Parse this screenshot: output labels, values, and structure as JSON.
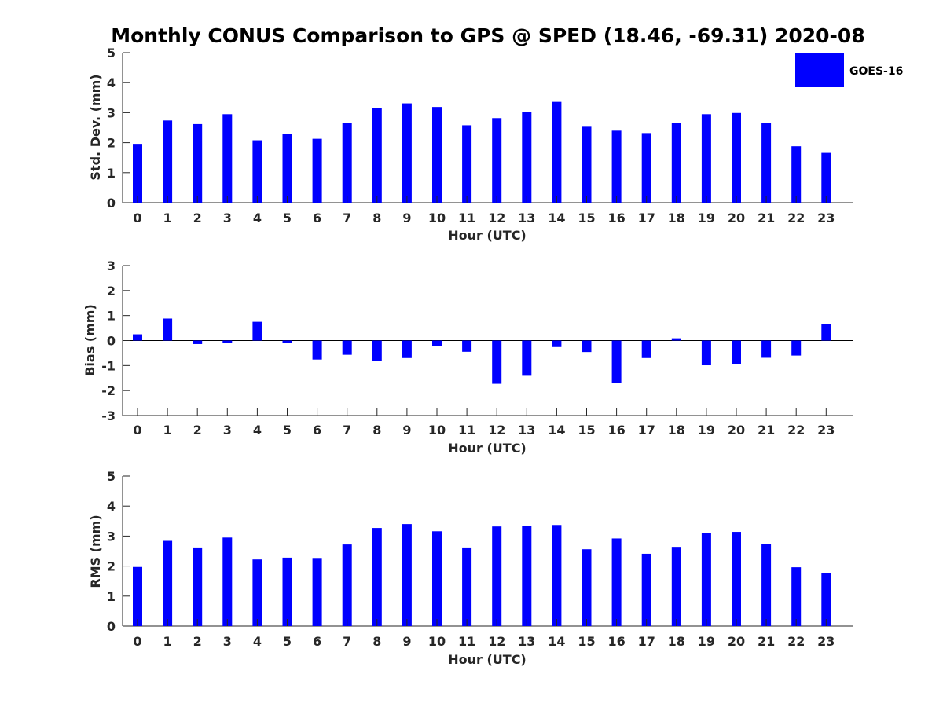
{
  "title": "Monthly CONUS Comparison to GPS @ SPED (18.46, -69.31) 2020-08",
  "colors": {
    "bar": "#0000ff",
    "axis": "#262626"
  },
  "legend": {
    "label": "GOES-16"
  },
  "chart_data": [
    {
      "type": "bar",
      "series_name": "GOES-16",
      "ylabel": "Std. Dev. (mm)",
      "xlabel": "Hour (UTC)",
      "ylim": [
        0,
        5
      ],
      "yticks": [
        0,
        1,
        2,
        3,
        4,
        5
      ],
      "categories": [
        0,
        1,
        2,
        3,
        4,
        5,
        6,
        7,
        8,
        9,
        10,
        11,
        12,
        13,
        14,
        15,
        16,
        17,
        18,
        19,
        20,
        21,
        22,
        23
      ],
      "values": [
        1.96,
        2.74,
        2.62,
        2.95,
        2.08,
        2.29,
        2.13,
        2.66,
        3.15,
        3.31,
        3.19,
        2.58,
        2.82,
        3.02,
        3.36,
        2.53,
        2.4,
        2.32,
        2.66,
        2.95,
        2.99,
        2.66,
        1.88,
        1.66
      ]
    },
    {
      "type": "bar",
      "series_name": "GOES-16",
      "ylabel": "Bias (mm)",
      "xlabel": "Hour (UTC)",
      "ylim": [
        -3,
        3
      ],
      "yticks": [
        -3,
        -2,
        -1,
        0,
        1,
        2,
        3
      ],
      "categories": [
        0,
        1,
        2,
        3,
        4,
        5,
        6,
        7,
        8,
        9,
        10,
        11,
        12,
        13,
        14,
        15,
        16,
        17,
        18,
        19,
        20,
        21,
        22,
        23
      ],
      "values": [
        0.25,
        0.88,
        -0.14,
        -0.1,
        0.75,
        -0.08,
        -0.76,
        -0.57,
        -0.82,
        -0.7,
        -0.21,
        -0.45,
        -1.73,
        -1.41,
        -0.26,
        -0.46,
        -1.71,
        -0.7,
        0.09,
        -0.99,
        -0.94,
        -0.69,
        -0.6,
        0.65
      ]
    },
    {
      "type": "bar",
      "series_name": "GOES-16",
      "ylabel": "RMS (mm)",
      "xlabel": "Hour (UTC)",
      "ylim": [
        0,
        5
      ],
      "yticks": [
        0,
        1,
        2,
        3,
        4,
        5
      ],
      "categories": [
        0,
        1,
        2,
        3,
        4,
        5,
        6,
        7,
        8,
        9,
        10,
        11,
        12,
        13,
        14,
        15,
        16,
        17,
        18,
        19,
        20,
        21,
        22,
        23
      ],
      "values": [
        1.97,
        2.84,
        2.62,
        2.95,
        2.22,
        2.28,
        2.27,
        2.72,
        3.27,
        3.4,
        3.16,
        2.62,
        3.32,
        3.35,
        3.37,
        2.56,
        2.92,
        2.41,
        2.64,
        3.1,
        3.14,
        2.74,
        1.96,
        1.78
      ]
    }
  ]
}
